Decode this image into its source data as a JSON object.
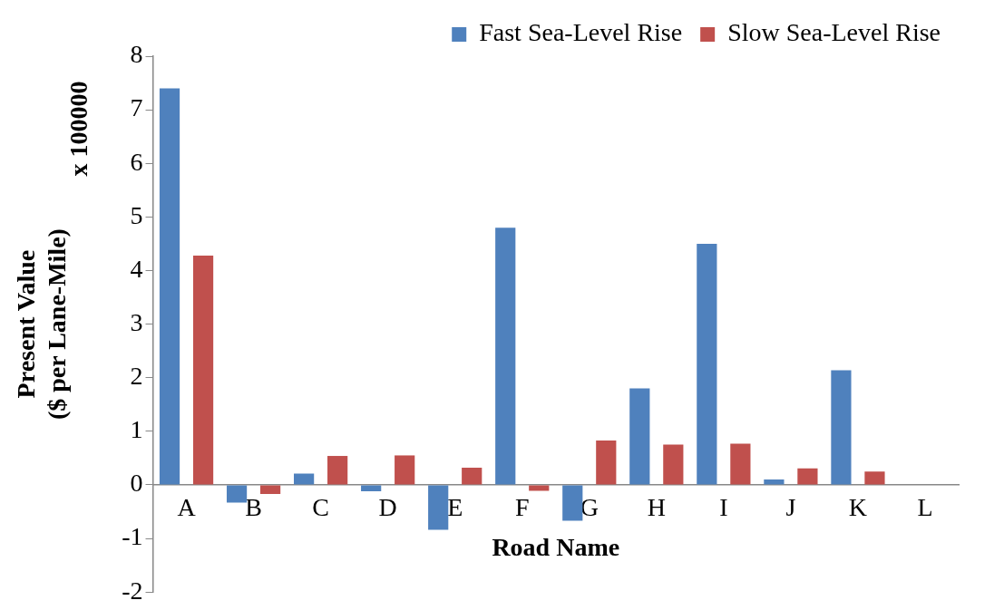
{
  "chart_data": {
    "type": "bar",
    "xlabel": "Road Name",
    "ylabel": "Present Value\n($ per Lane-Mile)",
    "annotations": [
      "x 100000"
    ],
    "categories": [
      "A",
      "B",
      "C",
      "D",
      "E",
      "F",
      "G",
      "H",
      "I",
      "J",
      "K",
      "L"
    ],
    "series": [
      {
        "name": "Fast Sea-Level Rise",
        "color": "#4f81bd",
        "values": [
          7.4,
          -0.33,
          0.21,
          -0.12,
          -0.84,
          4.8,
          -0.67,
          1.8,
          4.5,
          0.1,
          2.14,
          0
        ]
      },
      {
        "name": "Slow Sea-Level Rise",
        "color": "#c0504d",
        "values": [
          4.28,
          -0.17,
          0.54,
          0.55,
          0.32,
          -0.11,
          0.83,
          0.75,
          0.77,
          0.31,
          0.25,
          0
        ]
      }
    ],
    "ylim": [
      -2,
      8
    ],
    "yticks": [
      -2,
      -1,
      0,
      1,
      2,
      3,
      4,
      5,
      6,
      7,
      8
    ],
    "grid": false,
    "legend": "top"
  }
}
